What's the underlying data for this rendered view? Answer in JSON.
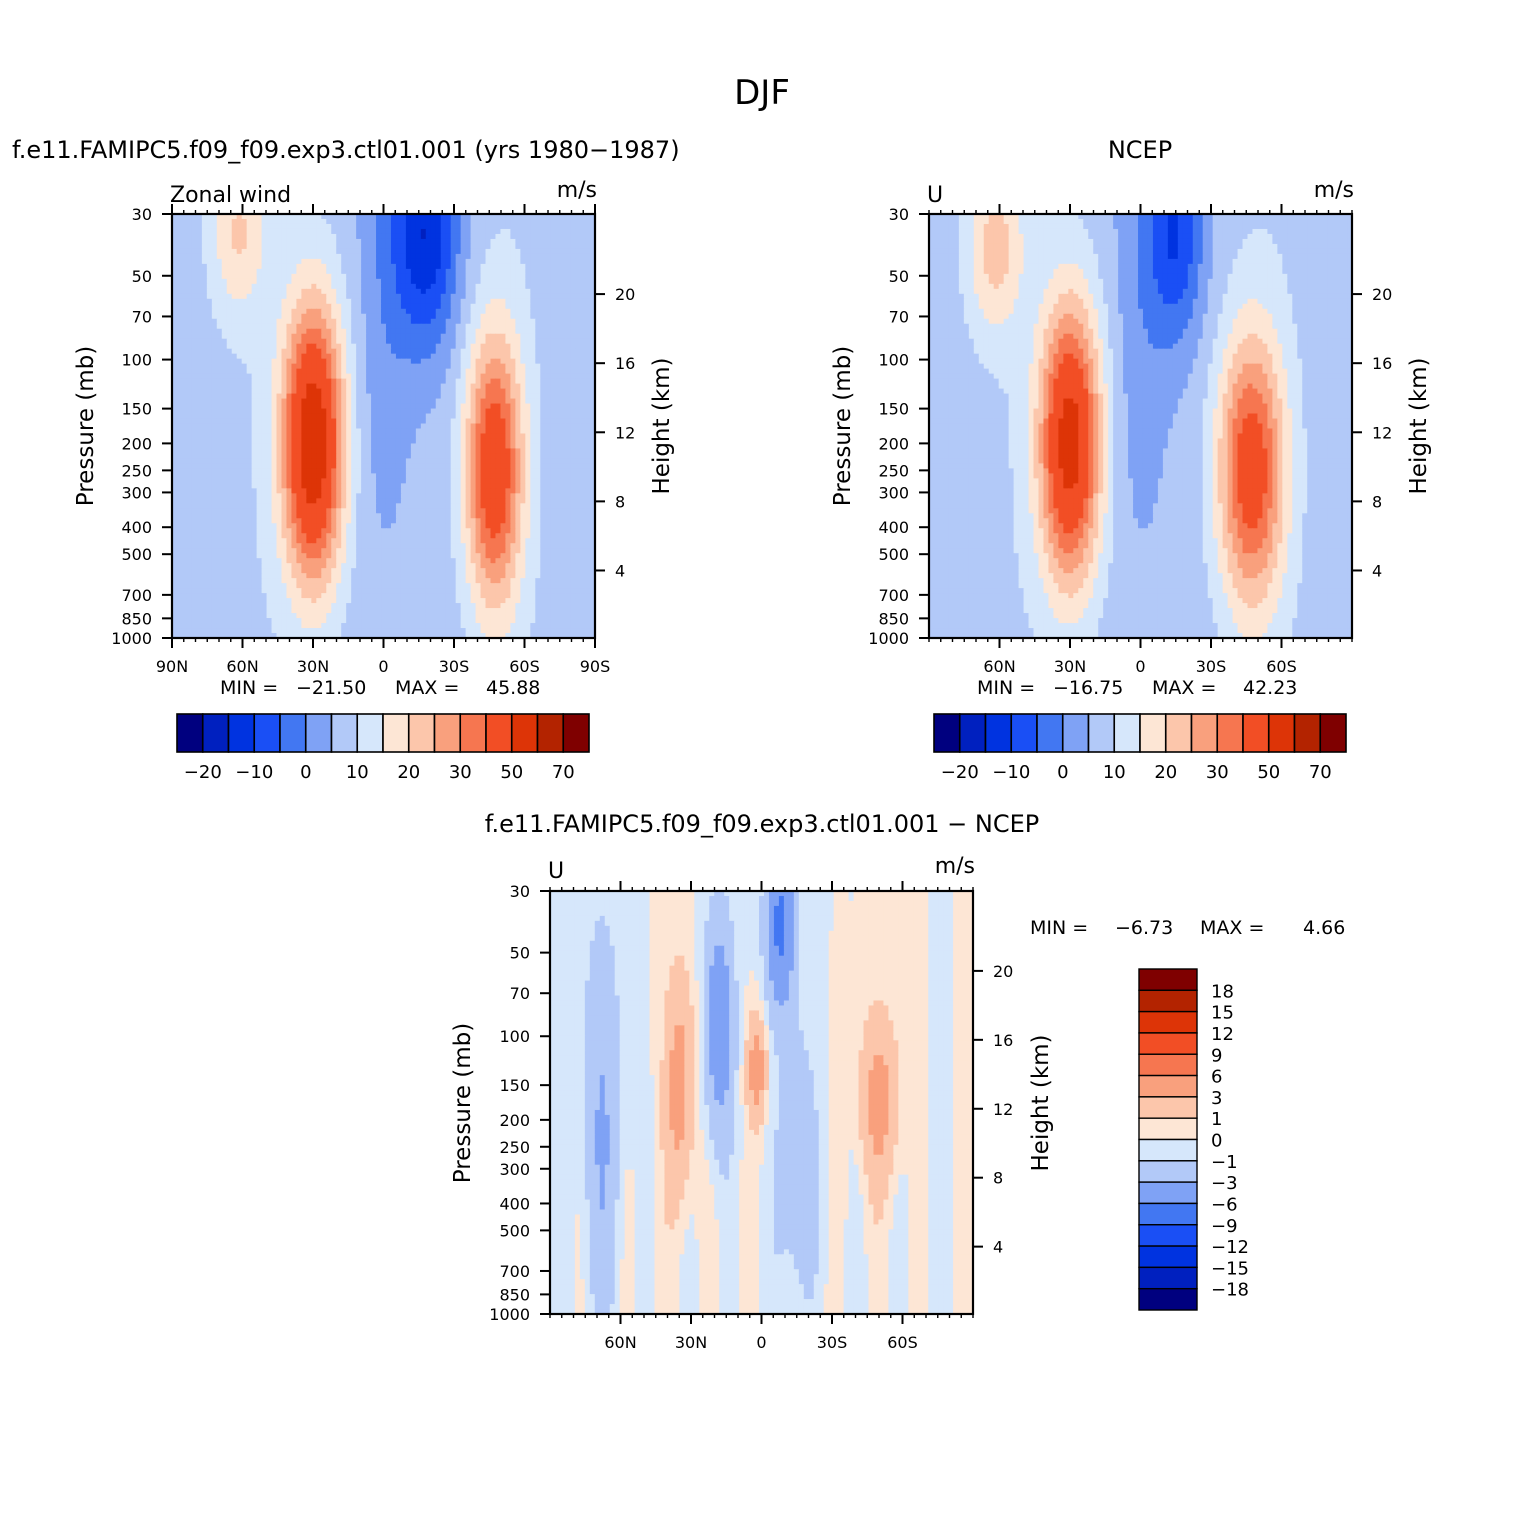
{
  "figure": {
    "title": "DJF",
    "diff_title": "f.e11.FAMIPC5.f09_f09.exp3.ctl01.001 − NCEP"
  },
  "colors": {
    "abs_levels": [
      "#00007f",
      "#0020bf",
      "#0033e0",
      "#1a4ff5",
      "#4277f2",
      "#7fa2f5",
      "#b2c9f8",
      "#d6e7fb",
      "#fde6d5",
      "#fcc6ab",
      "#f9a07d",
      "#f67650",
      "#f24e25",
      "#dd3407",
      "#b32300",
      "#7f0000"
    ],
    "diff_levels": [
      "#00007f",
      "#0020bf",
      "#0033e0",
      "#1a4ff5",
      "#4277f2",
      "#7fa2f5",
      "#b2c9f8",
      "#d6e7fb",
      "#fde6d5",
      "#fcc6ab",
      "#f9a07d",
      "#f67650",
      "#f24e25",
      "#dd3407",
      "#b32300",
      "#7f0000"
    ]
  },
  "chart_data": [
    {
      "type": "heatmap",
      "panel": "model",
      "subtitle": "f.e11.FAMIPC5.f09_f09.exp3.ctl01.001 (yrs 1980−1987)",
      "left_label": "Zonal wind",
      "units_label": "m/s",
      "ylabel": "Pressure (mb)",
      "ylabel_right": "Height (km)",
      "x_range": [
        90,
        -90
      ],
      "y_range": [
        30,
        1000
      ],
      "y_scale": "log",
      "x_ticks": [
        "90N",
        "60N",
        "30N",
        "0",
        "30S",
        "60S",
        "90S"
      ],
      "x_tick_values": [
        90,
        60,
        30,
        0,
        -30,
        -60,
        -90
      ],
      "y_ticks": [
        "30",
        "50",
        "70",
        "100",
        "150",
        "200",
        "250",
        "300",
        "400",
        "500",
        "700",
        "850",
        "1000"
      ],
      "y_tick_values": [
        30,
        50,
        70,
        100,
        150,
        200,
        250,
        300,
        400,
        500,
        700,
        850,
        1000
      ],
      "height_ticks": [
        "4",
        "8",
        "12",
        "16",
        "20"
      ],
      "height_tick_values": [
        4,
        8,
        12,
        16,
        20
      ],
      "stats": {
        "min_label": "MIN =",
        "min": "−21.50",
        "max_label": "MAX =",
        "max": "45.88"
      },
      "colorbar_labels": [
        "−20",
        "−10",
        "0",
        "10",
        "20",
        "30",
        "50",
        "70"
      ],
      "features": [
        {
          "lat": 30,
          "p": 200,
          "peak": 45.88,
          "width_deg": 13,
          "depth_decades": 0.5
        },
        {
          "lat": -47,
          "p": 250,
          "peak": 34,
          "width_deg": 12,
          "depth_decades": 0.48
        },
        {
          "lat": 62,
          "p": 35,
          "peak": 12,
          "width_deg": 12,
          "depth_decades": 0.3
        },
        {
          "lat": -18,
          "p": 35,
          "peak": -21.5,
          "width_deg": 14,
          "depth_decades": 0.42
        }
      ]
    },
    {
      "type": "heatmap",
      "panel": "ncep",
      "subtitle": "NCEP",
      "left_label": "U",
      "units_label": "m/s",
      "ylabel": "Pressure (mb)",
      "ylabel_right": "Height (km)",
      "x_range": [
        90,
        -90
      ],
      "y_range": [
        30,
        1000
      ],
      "y_scale": "log",
      "x_ticks": [
        "60N",
        "30N",
        "0",
        "30S",
        "60S"
      ],
      "x_tick_values": [
        60,
        30,
        0,
        -30,
        -60
      ],
      "y_ticks": [
        "30",
        "50",
        "70",
        "100",
        "150",
        "200",
        "250",
        "300",
        "400",
        "500",
        "700",
        "850",
        "1000"
      ],
      "y_tick_values": [
        30,
        50,
        70,
        100,
        150,
        200,
        250,
        300,
        400,
        500,
        700,
        850,
        1000
      ],
      "height_ticks": [
        "4",
        "8",
        "12",
        "16",
        "20"
      ],
      "height_tick_values": [
        4,
        8,
        12,
        16,
        20
      ],
      "stats": {
        "min_label": "MIN =",
        "min": "−16.75",
        "max_label": "MAX =",
        "max": "42.23"
      },
      "colorbar_labels": [
        "−20",
        "−10",
        "0",
        "10",
        "20",
        "30",
        "50",
        "70"
      ],
      "features": [
        {
          "lat": 30,
          "p": 200,
          "peak": 42.23,
          "width_deg": 13,
          "depth_decades": 0.5
        },
        {
          "lat": -47,
          "p": 250,
          "peak": 32,
          "width_deg": 14,
          "depth_decades": 0.48
        },
        {
          "lat": 62,
          "p": 40,
          "peak": 14,
          "width_deg": 12,
          "depth_decades": 0.3
        },
        {
          "lat": -15,
          "p": 35,
          "peak": -16.75,
          "width_deg": 12,
          "depth_decades": 0.4
        }
      ]
    },
    {
      "type": "heatmap",
      "panel": "difference",
      "left_label": "U",
      "units_label": "m/s",
      "ylabel": "Pressure (mb)",
      "ylabel_right": "Height (km)",
      "x_range": [
        90,
        -90
      ],
      "y_range": [
        30,
        1000
      ],
      "y_scale": "log",
      "x_ticks": [
        "60N",
        "30N",
        "0",
        "30S",
        "60S"
      ],
      "x_tick_values": [
        60,
        30,
        0,
        -30,
        -60
      ],
      "y_ticks": [
        "30",
        "50",
        "70",
        "100",
        "150",
        "200",
        "250",
        "300",
        "400",
        "500",
        "700",
        "850",
        "1000"
      ],
      "y_tick_values": [
        30,
        50,
        70,
        100,
        150,
        200,
        250,
        300,
        400,
        500,
        700,
        850,
        1000
      ],
      "height_ticks": [
        "4",
        "8",
        "12",
        "16",
        "20"
      ],
      "height_tick_values": [
        4,
        8,
        12,
        16,
        20
      ],
      "stats": {
        "min_label": "MIN =",
        "min": "−6.73",
        "max_label": "MAX =",
        "max": "4.66"
      },
      "colorbar_labels": [
        "18",
        "15",
        "12",
        "9",
        "6",
        "3",
        "1",
        "0",
        "−1",
        "−3",
        "−6",
        "−9",
        "−12",
        "−15",
        "−18"
      ],
      "features": [
        {
          "lat": 35,
          "p": 150,
          "peak": 4.2,
          "width_deg": 6,
          "depth_decades": 0.4
        },
        {
          "lat": 2,
          "p": 130,
          "peak": 4.66,
          "width_deg": 4,
          "depth_decades": 0.18
        },
        {
          "lat": -50,
          "p": 170,
          "peak": 4.0,
          "width_deg": 8,
          "depth_decades": 0.3
        },
        {
          "lat": 68,
          "p": 200,
          "peak": -3.0,
          "width_deg": 8,
          "depth_decades": 0.7
        },
        {
          "lat": 18,
          "p": 90,
          "peak": -5.2,
          "width_deg": 6,
          "depth_decades": 0.4
        },
        {
          "lat": -8,
          "p": 40,
          "peak": -6.73,
          "width_deg": 6,
          "depth_decades": 0.3
        },
        {
          "lat": -15,
          "p": 300,
          "peak": -2.5,
          "width_deg": 8,
          "depth_decades": 0.5
        }
      ]
    }
  ]
}
